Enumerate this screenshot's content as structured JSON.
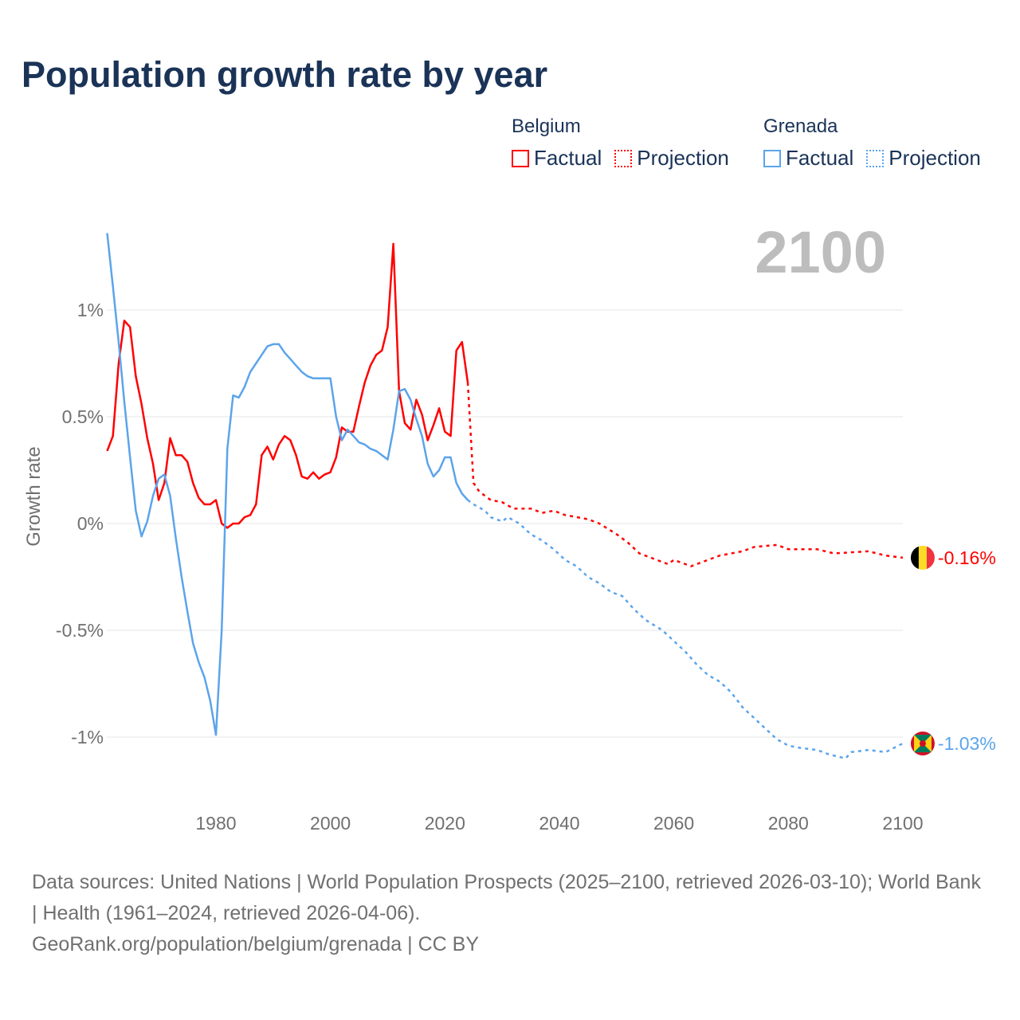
{
  "chart_data": {
    "type": "line",
    "title": "Population growth rate by year",
    "ylabel": "Growth rate",
    "xlabel": "",
    "current_year_label": "2100",
    "xlim": [
      1961,
      2100
    ],
    "ylim": [
      -1.15,
      1.4
    ],
    "x_ticks": [
      1980,
      2000,
      2020,
      2040,
      2060,
      2080,
      2100
    ],
    "x_tick_labels": [
      "1980",
      "2000",
      "2020",
      "2040",
      "2060",
      "2080",
      "2100"
    ],
    "y_ticks": [
      1,
      0.5,
      0,
      -0.5,
      -1
    ],
    "y_tick_labels": [
      "1%",
      "0.5%",
      "0%",
      "-0.5%",
      "-1%"
    ],
    "grid": true,
    "legend": {
      "placement": "top-right",
      "groups": [
        {
          "name": "Belgium",
          "factual": "Factual",
          "projection": "Projection",
          "color": "#ff0000"
        },
        {
          "name": "Grenada",
          "factual": "Factual",
          "projection": "Projection",
          "color": "#5ba4ec"
        }
      ]
    },
    "series": [
      {
        "name": "Belgium",
        "color": "#ff0000",
        "end_label": "-0.16%",
        "factual": [
          [
            1961,
            0.34
          ],
          [
            1962,
            0.41
          ],
          [
            1963,
            0.75
          ],
          [
            1964,
            0.95
          ],
          [
            1965,
            0.92
          ],
          [
            1966,
            0.69
          ],
          [
            1967,
            0.56
          ],
          [
            1968,
            0.4
          ],
          [
            1969,
            0.28
          ],
          [
            1970,
            0.11
          ],
          [
            1971,
            0.19
          ],
          [
            1972,
            0.4
          ],
          [
            1973,
            0.32
          ],
          [
            1974,
            0.32
          ],
          [
            1975,
            0.29
          ],
          [
            1976,
            0.19
          ],
          [
            1977,
            0.12
          ],
          [
            1978,
            0.09
          ],
          [
            1979,
            0.09
          ],
          [
            1980,
            0.11
          ],
          [
            1981,
            0.0
          ],
          [
            1982,
            -0.02
          ],
          [
            1983,
            0.0
          ],
          [
            1984,
            0.0
          ],
          [
            1985,
            0.03
          ],
          [
            1986,
            0.04
          ],
          [
            1987,
            0.09
          ],
          [
            1988,
            0.32
          ],
          [
            1989,
            0.36
          ],
          [
            1990,
            0.3
          ],
          [
            1991,
            0.37
          ],
          [
            1992,
            0.41
          ],
          [
            1993,
            0.39
          ],
          [
            1994,
            0.32
          ],
          [
            1995,
            0.22
          ],
          [
            1996,
            0.21
          ],
          [
            1997,
            0.24
          ],
          [
            1998,
            0.21
          ],
          [
            1999,
            0.23
          ],
          [
            2000,
            0.24
          ],
          [
            2001,
            0.31
          ],
          [
            2002,
            0.45
          ],
          [
            2003,
            0.43
          ],
          [
            2004,
            0.43
          ],
          [
            2005,
            0.55
          ],
          [
            2006,
            0.66
          ],
          [
            2007,
            0.74
          ],
          [
            2008,
            0.79
          ],
          [
            2009,
            0.81
          ],
          [
            2010,
            0.92
          ],
          [
            2011,
            1.31
          ],
          [
            2012,
            0.62
          ],
          [
            2013,
            0.47
          ],
          [
            2014,
            0.44
          ],
          [
            2015,
            0.58
          ],
          [
            2016,
            0.51
          ],
          [
            2017,
            0.39
          ],
          [
            2018,
            0.46
          ],
          [
            2019,
            0.54
          ],
          [
            2020,
            0.43
          ],
          [
            2021,
            0.41
          ],
          [
            2022,
            0.81
          ],
          [
            2023,
            0.85
          ],
          [
            2024,
            0.66
          ]
        ],
        "projection": [
          [
            2024,
            0.66
          ],
          [
            2025,
            0.19
          ],
          [
            2026,
            0.15
          ],
          [
            2027,
            0.13
          ],
          [
            2028,
            0.11
          ],
          [
            2030,
            0.1
          ],
          [
            2032,
            0.07
          ],
          [
            2035,
            0.07
          ],
          [
            2037,
            0.05
          ],
          [
            2039,
            0.06
          ],
          [
            2041,
            0.04
          ],
          [
            2045,
            0.02
          ],
          [
            2047,
            0.0
          ],
          [
            2050,
            -0.05
          ],
          [
            2052,
            -0.09
          ],
          [
            2054,
            -0.14
          ],
          [
            2057,
            -0.17
          ],
          [
            2059,
            -0.19
          ],
          [
            2060,
            -0.17
          ],
          [
            2063,
            -0.2
          ],
          [
            2065,
            -0.18
          ],
          [
            2068,
            -0.15
          ],
          [
            2072,
            -0.13
          ],
          [
            2074,
            -0.11
          ],
          [
            2078,
            -0.1
          ],
          [
            2080,
            -0.12
          ],
          [
            2085,
            -0.12
          ],
          [
            2088,
            -0.14
          ],
          [
            2094,
            -0.13
          ],
          [
            2097,
            -0.15
          ],
          [
            2100,
            -0.16
          ]
        ]
      },
      {
        "name": "Grenada",
        "color": "#5ba4ec",
        "end_label": "-1.03%",
        "factual": [
          [
            1961,
            1.36
          ],
          [
            1962,
            1.11
          ],
          [
            1963,
            0.85
          ],
          [
            1964,
            0.57
          ],
          [
            1965,
            0.31
          ],
          [
            1966,
            0.06
          ],
          [
            1967,
            -0.06
          ],
          [
            1968,
            0.01
          ],
          [
            1969,
            0.13
          ],
          [
            1970,
            0.21
          ],
          [
            1971,
            0.23
          ],
          [
            1972,
            0.13
          ],
          [
            1973,
            -0.07
          ],
          [
            1974,
            -0.25
          ],
          [
            1975,
            -0.41
          ],
          [
            1976,
            -0.56
          ],
          [
            1977,
            -0.65
          ],
          [
            1978,
            -0.72
          ],
          [
            1979,
            -0.83
          ],
          [
            1980,
            -0.99
          ],
          [
            1981,
            -0.5
          ],
          [
            1982,
            0.35
          ],
          [
            1983,
            0.6
          ],
          [
            1984,
            0.59
          ],
          [
            1985,
            0.64
          ],
          [
            1986,
            0.71
          ],
          [
            1987,
            0.75
          ],
          [
            1988,
            0.79
          ],
          [
            1989,
            0.83
          ],
          [
            1990,
            0.84
          ],
          [
            1991,
            0.84
          ],
          [
            1992,
            0.8
          ],
          [
            1993,
            0.77
          ],
          [
            1994,
            0.74
          ],
          [
            1995,
            0.71
          ],
          [
            1996,
            0.69
          ],
          [
            1997,
            0.68
          ],
          [
            1998,
            0.68
          ],
          [
            1999,
            0.68
          ],
          [
            2000,
            0.68
          ],
          [
            2001,
            0.5
          ],
          [
            2002,
            0.39
          ],
          [
            2003,
            0.44
          ],
          [
            2004,
            0.41
          ],
          [
            2005,
            0.38
          ],
          [
            2006,
            0.37
          ],
          [
            2007,
            0.35
          ],
          [
            2008,
            0.34
          ],
          [
            2009,
            0.32
          ],
          [
            2010,
            0.3
          ],
          [
            2011,
            0.44
          ],
          [
            2012,
            0.62
          ],
          [
            2013,
            0.63
          ],
          [
            2014,
            0.58
          ],
          [
            2015,
            0.49
          ],
          [
            2016,
            0.41
          ],
          [
            2017,
            0.28
          ],
          [
            2018,
            0.22
          ],
          [
            2019,
            0.25
          ],
          [
            2020,
            0.31
          ],
          [
            2021,
            0.31
          ],
          [
            2022,
            0.19
          ],
          [
            2023,
            0.14
          ],
          [
            2024,
            0.11
          ]
        ],
        "projection": [
          [
            2024,
            0.11
          ],
          [
            2025,
            0.09
          ],
          [
            2027,
            0.06
          ],
          [
            2028,
            0.03
          ],
          [
            2030,
            0.01
          ],
          [
            2031,
            0.03
          ],
          [
            2033,
            0.0
          ],
          [
            2035,
            -0.05
          ],
          [
            2037,
            -0.08
          ],
          [
            2039,
            -0.12
          ],
          [
            2041,
            -0.17
          ],
          [
            2043,
            -0.2
          ],
          [
            2045,
            -0.25
          ],
          [
            2047,
            -0.28
          ],
          [
            2049,
            -0.32
          ],
          [
            2051,
            -0.34
          ],
          [
            2053,
            -0.4
          ],
          [
            2055,
            -0.45
          ],
          [
            2058,
            -0.5
          ],
          [
            2060,
            -0.55
          ],
          [
            2062,
            -0.6
          ],
          [
            2064,
            -0.66
          ],
          [
            2066,
            -0.71
          ],
          [
            2068,
            -0.74
          ],
          [
            2070,
            -0.79
          ],
          [
            2072,
            -0.86
          ],
          [
            2074,
            -0.91
          ],
          [
            2076,
            -0.96
          ],
          [
            2078,
            -1.01
          ],
          [
            2080,
            -1.04
          ],
          [
            2082,
            -1.05
          ],
          [
            2085,
            -1.06
          ],
          [
            2087,
            -1.08
          ],
          [
            2090,
            -1.1
          ],
          [
            2091,
            -1.07
          ],
          [
            2094,
            -1.06
          ],
          [
            2097,
            -1.07
          ],
          [
            2100,
            -1.03
          ]
        ]
      }
    ]
  },
  "footer": {
    "sources": "Data sources: United Nations | World Population Prospects (2025–2100, retrieved 2026-03-10); World Bank | Health (1961–2024, retrieved 2026-04-06).",
    "credit": "GeoRank.org/population/belgium/grenada | CC BY"
  }
}
